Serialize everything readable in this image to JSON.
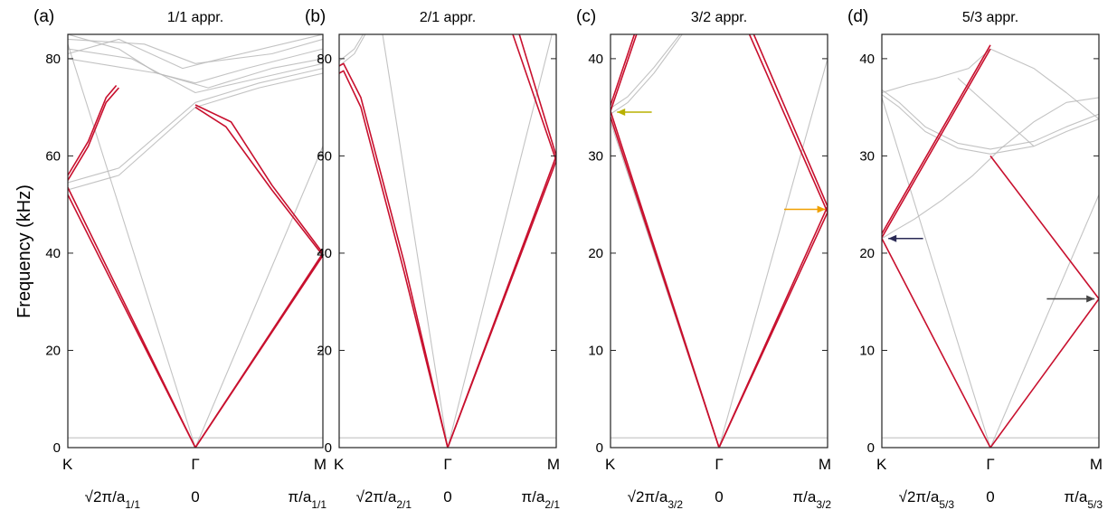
{
  "figure": {
    "ylabel": "Frequency (kHz)",
    "colors": {
      "highlight": "#c8102e",
      "background_band": "#b8b8b8",
      "frame": "#222222"
    }
  },
  "chart_data": [
    {
      "type": "line",
      "panel": "(a)",
      "title": "1/1 appr.",
      "ylim": [
        0,
        85
      ],
      "yticks": [
        0,
        20,
        40,
        60,
        80
      ],
      "k_points": [
        "K",
        "Γ",
        "M"
      ],
      "k_values": [
        "√2π/a1/1",
        "0",
        "π/a1/1"
      ],
      "k_value_parts": [
        {
          "main": "√2π/a",
          "sub": "1/1"
        },
        {
          "main": "0",
          "sub": ""
        },
        {
          "main": "π/a",
          "sub": "1/1"
        }
      ],
      "k_positions": [
        0,
        0.5,
        1
      ],
      "series": [
        {
          "role": "highlight",
          "x": [
            0,
            0.5
          ],
          "y": [
            52,
            0
          ]
        },
        {
          "role": "highlight",
          "x": [
            0,
            0.5
          ],
          "y": [
            53.5,
            0
          ]
        },
        {
          "role": "highlight",
          "x": [
            0.5,
            1
          ],
          "y": [
            0,
            39.5
          ]
        },
        {
          "role": "highlight",
          "x": [
            0.5,
            1
          ],
          "y": [
            0,
            40
          ]
        },
        {
          "role": "highlight",
          "x": [
            0,
            0.08,
            0.15,
            0.2
          ],
          "y": [
            55,
            62,
            71,
            74
          ]
        },
        {
          "role": "highlight",
          "x": [
            0,
            0.08,
            0.15,
            0.19
          ],
          "y": [
            56,
            63,
            72,
            74.5
          ]
        },
        {
          "role": "highlight",
          "x": [
            0.5,
            0.62,
            0.8,
            1
          ],
          "y": [
            70,
            66,
            53,
            39.5
          ]
        },
        {
          "role": "highlight",
          "x": [
            0.5,
            0.64,
            0.8,
            1
          ],
          "y": [
            70.5,
            67,
            54,
            40
          ]
        },
        {
          "role": "band",
          "x": [
            0,
            0.2,
            0.5,
            0.75,
            1
          ],
          "y": [
            53,
            56,
            70,
            74,
            77
          ]
        },
        {
          "role": "band",
          "x": [
            0,
            0.2,
            0.5,
            0.75,
            1
          ],
          "y": [
            54.5,
            57.5,
            71,
            75,
            78
          ]
        },
        {
          "role": "band",
          "x": [
            0,
            0.5
          ],
          "y": [
            83,
            0
          ]
        },
        {
          "role": "band",
          "x": [
            0.5,
            1
          ],
          "y": [
            0,
            62
          ]
        },
        {
          "role": "band",
          "x": [
            0,
            0.2,
            0.35,
            0.5,
            0.7,
            1
          ],
          "y": [
            85,
            82,
            77,
            75,
            78,
            82
          ]
        },
        {
          "role": "band",
          "x": [
            0,
            0.25,
            0.5,
            0.75,
            1
          ],
          "y": [
            82,
            80,
            73,
            76,
            79
          ]
        },
        {
          "role": "band",
          "x": [
            0,
            0.3,
            0.5,
            0.8,
            1
          ],
          "y": [
            84,
            83,
            79,
            81,
            84
          ]
        },
        {
          "role": "band",
          "x": [
            0,
            0.2,
            0.45,
            0.6,
            1
          ],
          "y": [
            81,
            84,
            78,
            80,
            85
          ]
        },
        {
          "role": "band",
          "x": [
            0,
            0.35,
            0.55,
            0.8,
            1
          ],
          "y": [
            80,
            77,
            74,
            78,
            80
          ]
        },
        {
          "role": "band",
          "x": [
            0,
            1
          ],
          "y": [
            2,
            2
          ]
        }
      ],
      "annotations": []
    },
    {
      "type": "line",
      "panel": "(b)",
      "title": "2/1 appr.",
      "ylim": [
        0,
        85
      ],
      "yticks": [
        0,
        20,
        40,
        60,
        80
      ],
      "k_points": [
        "K",
        "Γ",
        "M"
      ],
      "k_values": [
        "√2π/a2/1",
        "0",
        "π/a2/1"
      ],
      "k_value_parts": [
        {
          "main": "√2π/a",
          "sub": "2/1"
        },
        {
          "main": "0",
          "sub": ""
        },
        {
          "main": "π/a",
          "sub": "2/1"
        }
      ],
      "k_positions": [
        0,
        0.5,
        1
      ],
      "series": [
        {
          "role": "highlight",
          "x": [
            0,
            0.02,
            0.1,
            0.3,
            0.5
          ],
          "y": [
            77,
            77.5,
            70,
            36,
            0
          ]
        },
        {
          "role": "highlight",
          "x": [
            0,
            0.02,
            0.1,
            0.3,
            0.5
          ],
          "y": [
            78.5,
            79,
            72,
            38,
            0
          ]
        },
        {
          "role": "highlight",
          "x": [
            0.5,
            1
          ],
          "y": [
            0,
            59
          ]
        },
        {
          "role": "highlight",
          "x": [
            0.5,
            1
          ],
          "y": [
            0,
            60
          ]
        },
        {
          "role": "highlight",
          "x": [
            0.8,
            1
          ],
          "y": [
            85,
            59
          ]
        },
        {
          "role": "highlight",
          "x": [
            0.83,
            1
          ],
          "y": [
            85,
            60
          ]
        },
        {
          "role": "band",
          "x": [
            0,
            0.07,
            0.12
          ],
          "y": [
            78.5,
            81,
            85
          ]
        },
        {
          "role": "band",
          "x": [
            0,
            0.07,
            0.11
          ],
          "y": [
            79.5,
            82,
            85
          ]
        },
        {
          "role": "band",
          "x": [
            0.2,
            0.5
          ],
          "y": [
            85,
            0
          ]
        },
        {
          "role": "band",
          "x": [
            0.5,
            0.98
          ],
          "y": [
            0,
            85
          ]
        },
        {
          "role": "band",
          "x": [
            0,
            1
          ],
          "y": [
            2,
            2
          ]
        }
      ],
      "annotations": []
    },
    {
      "type": "line",
      "panel": "(c)",
      "title": "3/2 appr.",
      "ylim": [
        0,
        42.5
      ],
      "yticks": [
        0,
        10,
        20,
        30,
        40
      ],
      "k_points": [
        "K",
        "Γ",
        "M"
      ],
      "k_values": [
        "√2π/a3/2",
        "0",
        "π/a3/2"
      ],
      "k_value_parts": [
        {
          "main": "√2π/a",
          "sub": "3/2"
        },
        {
          "main": "0",
          "sub": ""
        },
        {
          "main": "π/a",
          "sub": "3/2"
        }
      ],
      "k_positions": [
        0,
        0.5,
        1
      ],
      "series": [
        {
          "role": "highlight",
          "x": [
            0,
            0.5
          ],
          "y": [
            34,
            0
          ]
        },
        {
          "role": "highlight",
          "x": [
            0,
            0.5
          ],
          "y": [
            34.6,
            0
          ]
        },
        {
          "role": "highlight",
          "x": [
            0.5,
            1
          ],
          "y": [
            0,
            24.2
          ]
        },
        {
          "role": "highlight",
          "x": [
            0.5,
            1
          ],
          "y": [
            0,
            24.8
          ]
        },
        {
          "role": "highlight",
          "x": [
            0,
            0.12
          ],
          "y": [
            34.6,
            42.5
          ]
        },
        {
          "role": "highlight",
          "x": [
            0,
            0.11
          ],
          "y": [
            35.2,
            42.5
          ]
        },
        {
          "role": "highlight",
          "x": [
            0.64,
            1
          ],
          "y": [
            42.5,
            24.2
          ]
        },
        {
          "role": "highlight",
          "x": [
            0.66,
            1
          ],
          "y": [
            42.5,
            24.8
          ]
        },
        {
          "role": "band",
          "x": [
            0,
            0.08,
            0.2,
            0.33
          ],
          "y": [
            34.3,
            35.5,
            38.5,
            42.5
          ]
        },
        {
          "role": "band",
          "x": [
            0,
            0.08,
            0.2,
            0.32
          ],
          "y": [
            34.9,
            36.1,
            39.1,
            42.5
          ]
        },
        {
          "role": "band",
          "x": [
            0,
            0.5
          ],
          "y": [
            33.5,
            0
          ]
        },
        {
          "role": "band",
          "x": [
            0.5,
            1
          ],
          "y": [
            0,
            40
          ]
        },
        {
          "role": "band",
          "x": [
            0,
            1
          ],
          "y": [
            1,
            1
          ]
        }
      ],
      "annotations": [
        {
          "type": "arrow",
          "color": "#b8b000",
          "from": [
            0.19,
            34.5
          ],
          "to": [
            0.03,
            34.5
          ]
        },
        {
          "type": "arrow",
          "color": "#f0a000",
          "from": [
            0.8,
            24.5
          ],
          "to": [
            0.99,
            24.5
          ]
        }
      ]
    },
    {
      "type": "line",
      "panel": "(d)",
      "title": "5/3 appr.",
      "ylim": [
        0,
        42.5
      ],
      "yticks": [
        0,
        10,
        20,
        30,
        40
      ],
      "k_points": [
        "K",
        "Γ",
        "M"
      ],
      "k_values": [
        "√2π/a5/3",
        "0",
        "π/a5/3"
      ],
      "k_value_parts": [
        {
          "main": "√2π/a",
          "sub": "5/3"
        },
        {
          "main": "0",
          "sub": ""
        },
        {
          "main": "π/a",
          "sub": "5/3"
        }
      ],
      "k_positions": [
        0,
        0.5,
        1
      ],
      "series": [
        {
          "role": "highlight",
          "x": [
            0,
            0.5
          ],
          "y": [
            21.5,
            0
          ]
        },
        {
          "role": "highlight",
          "x": [
            0.5,
            1
          ],
          "y": [
            0,
            15.3
          ]
        },
        {
          "role": "highlight",
          "x": [
            0,
            0.5
          ],
          "y": [
            21.6,
            41
          ]
        },
        {
          "role": "highlight",
          "x": [
            0,
            0.5
          ],
          "y": [
            22,
            41.4
          ]
        },
        {
          "role": "highlight",
          "x": [
            0.5,
            1
          ],
          "y": [
            30,
            15.3
          ]
        },
        {
          "role": "band",
          "x": [
            0,
            0.08,
            0.2,
            0.35,
            0.5,
            0.7,
            0.85,
            1
          ],
          "y": [
            36.3,
            35,
            32.5,
            30.8,
            30.2,
            31,
            32.5,
            33.8
          ]
        },
        {
          "role": "band",
          "x": [
            0,
            0.08,
            0.2,
            0.35,
            0.5,
            0.7,
            0.85,
            1
          ],
          "y": [
            36.8,
            35.5,
            33,
            31.3,
            30.7,
            31.5,
            33,
            34.3
          ]
        },
        {
          "role": "band",
          "x": [
            0,
            0.12,
            0.25,
            0.4,
            0.5
          ],
          "y": [
            36.5,
            37.3,
            38,
            39,
            41
          ]
        },
        {
          "role": "band",
          "x": [
            0.5,
            0.7,
            0.85,
            1
          ],
          "y": [
            41,
            39,
            36.5,
            33.8
          ]
        },
        {
          "role": "band",
          "x": [
            0,
            0.05,
            0.15,
            0.28,
            0.42,
            0.55,
            0.7,
            0.85,
            1
          ],
          "y": [
            21.5,
            22.2,
            23.5,
            25.5,
            28,
            30.8,
            33.5,
            35.5,
            36
          ]
        },
        {
          "role": "band",
          "x": [
            0,
            0.5
          ],
          "y": [
            36,
            0
          ]
        },
        {
          "role": "band",
          "x": [
            0.5,
            1
          ],
          "y": [
            0,
            26
          ]
        },
        {
          "role": "band",
          "x": [
            0.35,
            0.7
          ],
          "y": [
            38,
            31
          ]
        },
        {
          "role": "band",
          "x": [
            0,
            1
          ],
          "y": [
            1,
            1
          ]
        }
      ],
      "annotations": [
        {
          "type": "arrow",
          "color": "#2a2a55",
          "from": [
            0.19,
            21.5
          ],
          "to": [
            0.03,
            21.5
          ]
        },
        {
          "type": "arrow",
          "color": "#444444",
          "from": [
            0.76,
            15.3
          ],
          "to": [
            0.98,
            15.3
          ]
        }
      ]
    }
  ]
}
